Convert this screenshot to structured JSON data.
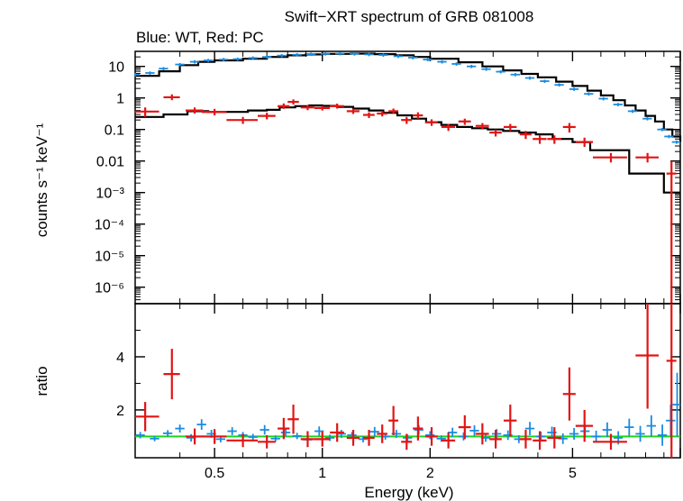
{
  "title": "Swift−XRT spectrum of GRB 081008",
  "subtitle": "Blue: WT, Red: PC",
  "xlabel": "Energy (keV)",
  "colors": {
    "wt": "#1a8ce0",
    "pc": "#e21414",
    "model": "#000000",
    "unity": "#1cd41c",
    "axis": "#000000"
  },
  "chart_data": [
    {
      "type": "scatter",
      "panel": "spectrum",
      "title": "Swift−XRT spectrum of GRB 081008",
      "subtitle": "Blue: WT, Red: PC",
      "xlabel": "",
      "ylabel": "counts s⁻¹ keV⁻¹",
      "xscale": "log",
      "yscale": "log",
      "xlim": [
        0.3,
        10
      ],
      "ylim": [
        3e-07,
        30
      ],
      "xticks": [],
      "yticks": [
        {
          "v": 10,
          "label": "10"
        },
        {
          "v": 1,
          "label": "1"
        },
        {
          "v": 0.1,
          "label": "0.1"
        },
        {
          "v": 0.01,
          "label": "0.01"
        },
        {
          "v": 0.001,
          "label": "10⁻³"
        },
        {
          "v": 0.0001,
          "label": "10⁻⁴"
        },
        {
          "v": 1e-05,
          "label": "10⁻⁵"
        },
        {
          "v": 1e-06,
          "label": "10⁻⁶"
        }
      ],
      "series": [
        {
          "name": "WT",
          "color": "#1a8ce0",
          "x": [
            0.3,
            0.33,
            0.36,
            0.4,
            0.44,
            0.48,
            0.53,
            0.58,
            0.64,
            0.7,
            0.77,
            0.85,
            0.93,
            1.02,
            1.12,
            1.23,
            1.35,
            1.48,
            1.63,
            1.79,
            1.97,
            2.16,
            2.37,
            2.61,
            2.87,
            3.15,
            3.46,
            3.8,
            4.18,
            4.59,
            5.05,
            5.55,
            6.1,
            6.7,
            7.36,
            8.09,
            8.89,
            9.3,
            9.77
          ],
          "y": [
            5.5,
            6.2,
            8.5,
            11.5,
            14.0,
            15.5,
            16.5,
            17.0,
            18.5,
            20.0,
            22.0,
            23.5,
            24.5,
            25.0,
            25.5,
            25.0,
            24.0,
            23.0,
            21.0,
            19.0,
            16.5,
            14.0,
            12.0,
            10.0,
            8.2,
            6.8,
            5.5,
            4.3,
            3.4,
            2.6,
            1.9,
            1.35,
            0.95,
            0.62,
            0.38,
            0.22,
            0.1,
            0.06,
            0.04
          ],
          "xerr": 0.03,
          "yerr_frac": 0.12
        },
        {
          "name": "PC",
          "color": "#e21414",
          "x": [
            0.32,
            0.38,
            0.44,
            0.5,
            0.6,
            0.7,
            0.78,
            0.83,
            0.91,
            1.0,
            1.1,
            1.22,
            1.35,
            1.47,
            1.58,
            1.72,
            1.85,
            2.02,
            2.25,
            2.5,
            2.8,
            3.05,
            3.35,
            3.7,
            4.05,
            4.45,
            4.9,
            5.4,
            6.4,
            8.1,
            9.45
          ],
          "y": [
            0.37,
            1.05,
            0.4,
            0.36,
            0.2,
            0.27,
            0.55,
            0.75,
            0.5,
            0.48,
            0.55,
            0.38,
            0.29,
            0.32,
            0.38,
            0.2,
            0.28,
            0.17,
            0.12,
            0.18,
            0.13,
            0.08,
            0.12,
            0.07,
            0.05,
            0.05,
            0.12,
            0.04,
            0.013,
            0.013,
            0.004
          ],
          "xerr_l": [
            0.03,
            0.02,
            0.025,
            0.04,
            0.06,
            0.04,
            0.03,
            0.03,
            0.04,
            0.05,
            0.05,
            0.05,
            0.05,
            0.05,
            0.05,
            0.06,
            0.06,
            0.08,
            0.1,
            0.1,
            0.12,
            0.12,
            0.14,
            0.14,
            0.18,
            0.2,
            0.2,
            0.3,
            0.7,
            0.6,
            0.3
          ],
          "xerr_h": [
            0.03,
            0.02,
            0.025,
            0.04,
            0.06,
            0.04,
            0.03,
            0.03,
            0.04,
            0.05,
            0.05,
            0.05,
            0.05,
            0.05,
            0.05,
            0.06,
            0.06,
            0.08,
            0.1,
            0.1,
            0.12,
            0.12,
            0.14,
            0.14,
            0.18,
            0.2,
            0.2,
            0.3,
            0.7,
            0.6,
            0.3
          ],
          "ylo": [
            0.25,
            0.85,
            0.32,
            0.28,
            0.15,
            0.21,
            0.45,
            0.62,
            0.41,
            0.4,
            0.46,
            0.31,
            0.23,
            0.26,
            0.31,
            0.15,
            0.22,
            0.13,
            0.09,
            0.14,
            0.1,
            0.06,
            0.09,
            0.05,
            0.035,
            0.035,
            0.08,
            0.028,
            0.009,
            0.009,
            3e-07
          ],
          "yhi": [
            0.5,
            1.3,
            0.5,
            0.45,
            0.25,
            0.34,
            0.67,
            0.9,
            0.6,
            0.57,
            0.66,
            0.46,
            0.35,
            0.39,
            0.46,
            0.25,
            0.35,
            0.21,
            0.15,
            0.22,
            0.16,
            0.1,
            0.15,
            0.09,
            0.065,
            0.065,
            0.16,
            0.055,
            0.018,
            0.018,
            0.01
          ]
        }
      ],
      "models": [
        {
          "name": "WT model",
          "x": [
            0.3,
            0.35,
            0.4,
            0.45,
            0.5,
            0.6,
            0.7,
            0.8,
            0.9,
            1.0,
            1.2,
            1.4,
            1.6,
            1.8,
            2.0,
            2.4,
            2.8,
            3.2,
            3.6,
            4.0,
            4.5,
            5.0,
            5.5,
            6.0,
            6.5,
            7.0,
            7.5,
            8.0,
            8.5,
            9.0,
            9.5,
            10.0
          ],
          "y": [
            5.0,
            7.0,
            11.0,
            14.0,
            15.5,
            17.5,
            20.0,
            22.5,
            24.0,
            25.0,
            25.5,
            24.5,
            22.5,
            20.0,
            17.5,
            13.5,
            10.0,
            7.5,
            5.8,
            4.5,
            3.3,
            2.4,
            1.7,
            1.2,
            0.85,
            0.58,
            0.4,
            0.27,
            0.18,
            0.1,
            0.06,
            0.04
          ]
        },
        {
          "name": "PC model",
          "x": [
            0.3,
            0.35,
            0.36,
            0.42,
            0.48,
            0.55,
            0.62,
            0.7,
            0.76,
            0.84,
            0.92,
            1.0,
            1.1,
            1.22,
            1.35,
            1.48,
            1.62,
            1.78,
            1.95,
            2.15,
            2.38,
            2.62,
            2.9,
            3.2,
            3.55,
            3.95,
            4.4,
            5.0,
            5.6,
            7.2,
            9.0,
            9.5,
            10.0
          ],
          "y": [
            0.25,
            0.25,
            0.3,
            0.38,
            0.36,
            0.36,
            0.4,
            0.42,
            0.5,
            0.55,
            0.58,
            0.56,
            0.52,
            0.46,
            0.4,
            0.34,
            0.28,
            0.22,
            0.17,
            0.14,
            0.12,
            0.11,
            0.1,
            0.09,
            0.08,
            0.07,
            0.05,
            0.04,
            0.022,
            0.004,
            0.001,
            0.001,
            0.001
          ]
        }
      ]
    },
    {
      "type": "scatter",
      "panel": "ratio",
      "xlabel": "Energy (keV)",
      "ylabel": "ratio",
      "xscale": "log",
      "yscale": "linear",
      "xlim": [
        0.3,
        10
      ],
      "ylim": [
        0.2,
        6.0
      ],
      "xticks": [
        {
          "v": 0.5,
          "label": "0.5"
        },
        {
          "v": 1,
          "label": "1"
        },
        {
          "v": 2,
          "label": "2"
        },
        {
          "v": 5,
          "label": "5"
        }
      ],
      "yticks": [
        {
          "v": 2,
          "label": "2"
        },
        {
          "v": 4,
          "label": "4"
        }
      ],
      "reference_line": 1,
      "series": [
        {
          "name": "WT",
          "color": "#1a8ce0",
          "x": [
            0.31,
            0.34,
            0.37,
            0.4,
            0.43,
            0.46,
            0.49,
            0.52,
            0.56,
            0.6,
            0.64,
            0.69,
            0.74,
            0.79,
            0.85,
            0.91,
            0.98,
            1.05,
            1.13,
            1.21,
            1.3,
            1.4,
            1.5,
            1.61,
            1.73,
            1.86,
            2.0,
            2.15,
            2.31,
            2.48,
            2.66,
            2.86,
            3.07,
            3.3,
            3.54,
            3.8,
            4.08,
            4.38,
            4.7,
            5.05,
            5.42,
            5.82,
            6.25,
            6.71,
            7.2,
            7.73,
            8.3,
            8.91,
            9.4,
            9.8
          ],
          "y": [
            1.05,
            0.92,
            1.12,
            1.3,
            0.95,
            1.45,
            1.1,
            0.9,
            1.2,
            1.05,
            0.98,
            1.25,
            0.92,
            1.15,
            1.02,
            0.88,
            1.2,
            0.95,
            1.1,
            1.05,
            0.9,
            1.18,
            1.0,
            1.1,
            0.95,
            1.25,
            1.05,
            0.92,
            1.15,
            1.0,
            1.22,
            0.95,
            1.1,
            1.05,
            0.9,
            1.3,
            1.0,
            1.15,
            0.92,
            1.1,
            1.2,
            1.0,
            1.25,
            0.95,
            1.35,
            1.1,
            1.4,
            1.05,
            1.6,
            2.2
          ],
          "yerr": [
            0.12,
            0.1,
            0.12,
            0.15,
            0.14,
            0.2,
            0.15,
            0.12,
            0.15,
            0.12,
            0.12,
            0.18,
            0.12,
            0.15,
            0.12,
            0.12,
            0.18,
            0.12,
            0.15,
            0.12,
            0.12,
            0.18,
            0.12,
            0.15,
            0.12,
            0.18,
            0.15,
            0.12,
            0.18,
            0.15,
            0.2,
            0.15,
            0.18,
            0.18,
            0.15,
            0.25,
            0.18,
            0.22,
            0.2,
            0.22,
            0.25,
            0.22,
            0.28,
            0.25,
            0.32,
            0.3,
            0.4,
            0.4,
            0.6,
            1.2
          ]
        },
        {
          "name": "PC",
          "color": "#e21414",
          "x": [
            0.32,
            0.38,
            0.44,
            0.5,
            0.6,
            0.7,
            0.78,
            0.83,
            0.91,
            1.0,
            1.1,
            1.22,
            1.35,
            1.47,
            1.58,
            1.72,
            1.85,
            2.02,
            2.25,
            2.5,
            2.8,
            3.05,
            3.35,
            3.7,
            4.05,
            4.45,
            4.9,
            5.4,
            6.4,
            8.1,
            9.45
          ],
          "y": [
            1.75,
            3.35,
            1.0,
            1.0,
            0.85,
            0.8,
            1.3,
            1.65,
            0.9,
            0.9,
            1.15,
            0.95,
            0.95,
            1.1,
            1.6,
            0.8,
            1.3,
            1.0,
            0.85,
            1.35,
            1.1,
            0.9,
            1.6,
            0.9,
            0.85,
            0.95,
            2.6,
            1.4,
            0.8,
            4.05,
            3.85
          ],
          "xerr_l": [
            0.03,
            0.02,
            0.025,
            0.04,
            0.06,
            0.04,
            0.03,
            0.03,
            0.04,
            0.05,
            0.05,
            0.05,
            0.05,
            0.05,
            0.05,
            0.06,
            0.06,
            0.08,
            0.1,
            0.1,
            0.12,
            0.12,
            0.14,
            0.14,
            0.18,
            0.2,
            0.2,
            0.3,
            0.7,
            0.6,
            0.3
          ],
          "xerr_h": [
            0.03,
            0.02,
            0.025,
            0.04,
            0.06,
            0.04,
            0.03,
            0.03,
            0.04,
            0.05,
            0.05,
            0.05,
            0.05,
            0.05,
            0.05,
            0.06,
            0.06,
            0.08,
            0.1,
            0.1,
            0.12,
            0.12,
            0.14,
            0.14,
            0.18,
            0.2,
            0.2,
            0.3,
            0.7,
            0.6,
            0.3
          ],
          "yerr": [
            0.55,
            0.95,
            0.3,
            0.28,
            0.25,
            0.25,
            0.4,
            0.55,
            0.3,
            0.28,
            0.35,
            0.3,
            0.3,
            0.35,
            0.55,
            0.3,
            0.45,
            0.35,
            0.3,
            0.45,
            0.4,
            0.35,
            0.6,
            0.35,
            0.35,
            0.4,
            1.0,
            0.6,
            0.3,
            2.0,
            5.2
          ]
        }
      ]
    }
  ]
}
